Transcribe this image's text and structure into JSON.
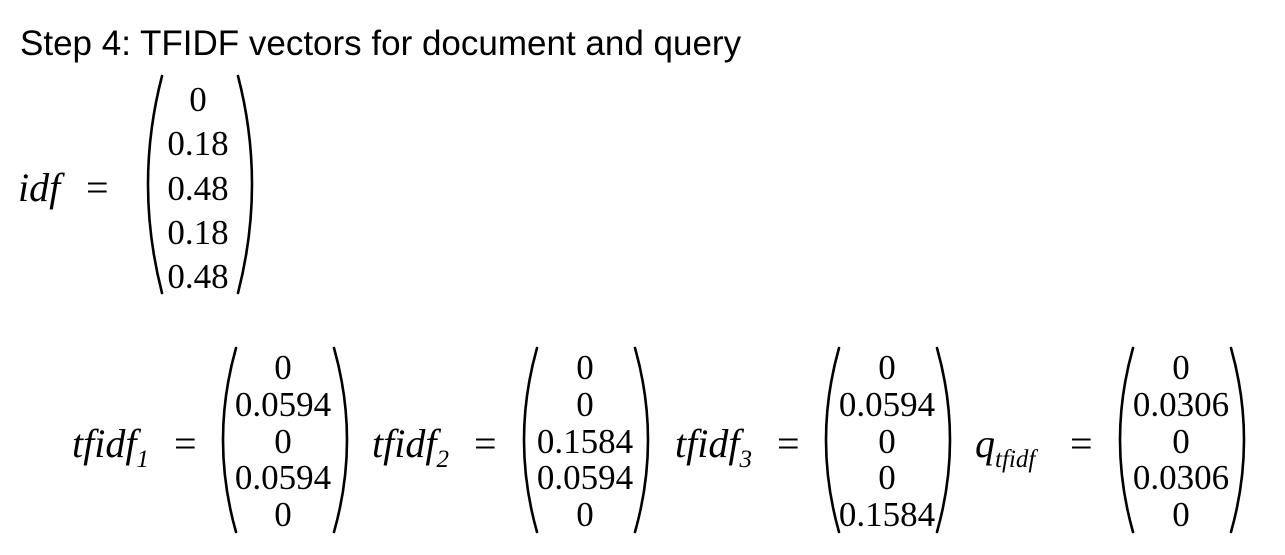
{
  "heading": "Step 4: TFIDF vectors for document and query",
  "idf": {
    "label": "idf",
    "equals": "=",
    "values": [
      "0",
      "0.18",
      "0.48",
      "0.18",
      "0.48"
    ]
  },
  "tfidf_vectors": [
    {
      "label_base": "tfidf",
      "label_sub": "1",
      "equals": "=",
      "values": [
        "0",
        "0.0594",
        "0",
        "0.0594",
        "0"
      ]
    },
    {
      "label_base": "tfidf",
      "label_sub": "2",
      "equals": "=",
      "values": [
        "0",
        "0",
        "0.1584",
        "0.0594",
        "0"
      ]
    },
    {
      "label_base": "tfidf",
      "label_sub": "3",
      "equals": "=",
      "values": [
        "0",
        "0.0594",
        "0",
        "0",
        "0.1584"
      ]
    }
  ],
  "query_vector": {
    "label_base": "q",
    "label_sub": "tfidf",
    "equals": "=",
    "values": [
      "0",
      "0.0306",
      "0",
      "0.0306",
      "0"
    ]
  }
}
